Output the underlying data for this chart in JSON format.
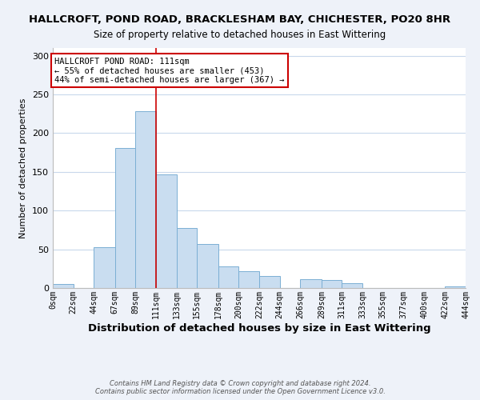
{
  "title1": "HALLCROFT, POND ROAD, BRACKLESHAM BAY, CHICHESTER, PO20 8HR",
  "title2": "Size of property relative to detached houses in East Wittering",
  "xlabel": "Distribution of detached houses by size in East Wittering",
  "ylabel": "Number of detached properties",
  "bar_edges": [
    0,
    22,
    44,
    67,
    89,
    111,
    133,
    155,
    178,
    200,
    222,
    244,
    266,
    289,
    311,
    333,
    355,
    377,
    400,
    422,
    444
  ],
  "bar_heights": [
    5,
    0,
    53,
    181,
    228,
    147,
    77,
    57,
    28,
    22,
    16,
    0,
    11,
    10,
    6,
    0,
    0,
    0,
    0,
    2
  ],
  "bar_color": "#c9ddf0",
  "bar_edgecolor": "#7bafd4",
  "vline_x": 111,
  "vline_color": "#cc0000",
  "ylim": [
    0,
    310
  ],
  "annotation_title": "HALLCROFT POND ROAD: 111sqm",
  "annotation_line1": "← 55% of detached houses are smaller (453)",
  "annotation_line2": "44% of semi-detached houses are larger (367) →",
  "annotation_box_color": "#cc0000",
  "tick_labels": [
    "0sqm",
    "22sqm",
    "44sqm",
    "67sqm",
    "89sqm",
    "111sqm",
    "133sqm",
    "155sqm",
    "178sqm",
    "200sqm",
    "222sqm",
    "244sqm",
    "266sqm",
    "289sqm",
    "311sqm",
    "333sqm",
    "355sqm",
    "377sqm",
    "400sqm",
    "422sqm",
    "444sqm"
  ],
  "footnote": "Contains HM Land Registry data © Crown copyright and database right 2024.\nContains public sector information licensed under the Open Government Licence v3.0.",
  "bg_color": "#eef2f9",
  "plot_bg_color": "#ffffff",
  "grid_color": "#c8d8ec",
  "title1_fontsize": 9.5,
  "title2_fontsize": 8.5,
  "xlabel_fontsize": 9.5,
  "ylabel_fontsize": 8,
  "annotation_fontsize": 7.5,
  "tick_fontsize": 7,
  "ytick_fontsize": 8,
  "footnote_fontsize": 6
}
